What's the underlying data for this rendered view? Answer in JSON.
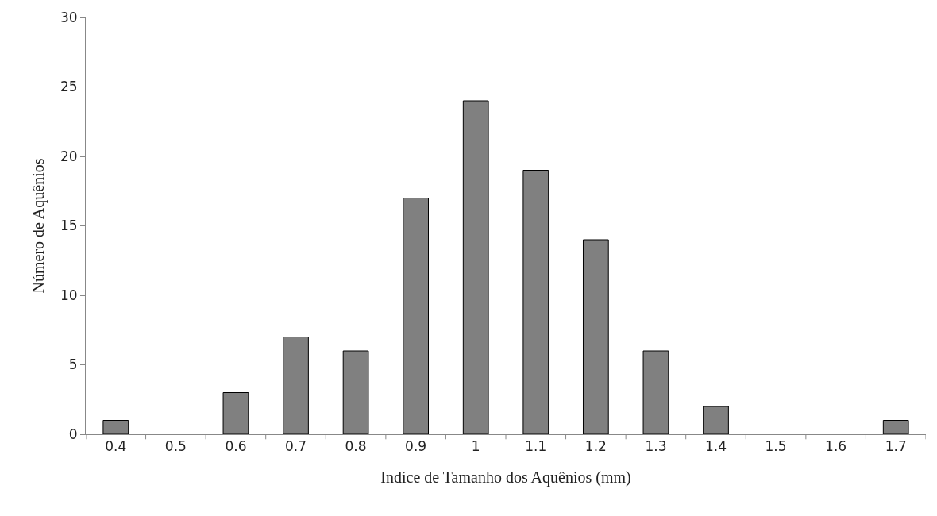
{
  "chart_data": {
    "type": "bar",
    "categories": [
      "0.4",
      "0.5",
      "0.6",
      "0.7",
      "0.8",
      "0.9",
      "1",
      "1.1",
      "1.2",
      "1.3",
      "1.4",
      "1.5",
      "1.6",
      "1.7"
    ],
    "values": [
      1,
      0,
      3,
      7,
      6,
      17,
      24,
      19,
      14,
      6,
      2,
      0,
      0,
      1
    ],
    "color": "#808080",
    "xlabel": "Indíce de Tamanho dos Aquênios (mm)",
    "ylabel": "Número de Aquênios",
    "ylim": [
      0,
      30
    ],
    "yticks": [
      0,
      5,
      10,
      15,
      20,
      25,
      30
    ]
  }
}
